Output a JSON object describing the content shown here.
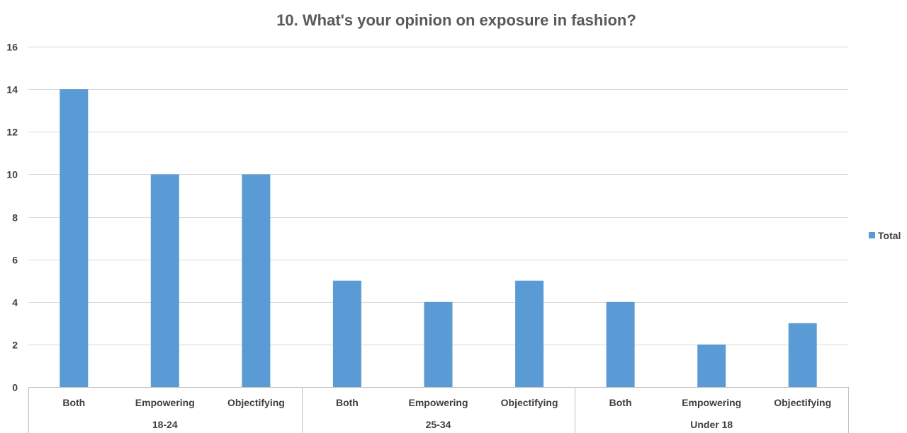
{
  "chart_data": {
    "type": "bar",
    "title": "10. What's your opinion on exposure in fashion?",
    "xlabel": "",
    "ylabel": "",
    "ylim": [
      0,
      16
    ],
    "yticks": [
      0,
      2,
      4,
      6,
      8,
      10,
      12,
      14,
      16
    ],
    "grid": true,
    "legend_position": "right",
    "groups": [
      {
        "label": "18-24",
        "categories": [
          "Both",
          "Empowering",
          "Objectifying"
        ]
      },
      {
        "label": "25-34",
        "categories": [
          "Both",
          "Empowering",
          "Objectifying"
        ]
      },
      {
        "label": "Under 18",
        "categories": [
          "Both",
          "Empowering",
          "Objectifying"
        ]
      }
    ],
    "series": [
      {
        "name": "Total",
        "color": "#5B9BD5",
        "values": [
          14,
          10,
          10,
          5,
          4,
          5,
          4,
          2,
          3
        ]
      }
    ],
    "colors": {
      "bar": "#5B9BD5",
      "grid": "#D9D9D9",
      "axis": "#BFBFBF",
      "text": "#404040",
      "title": "#595959"
    }
  }
}
